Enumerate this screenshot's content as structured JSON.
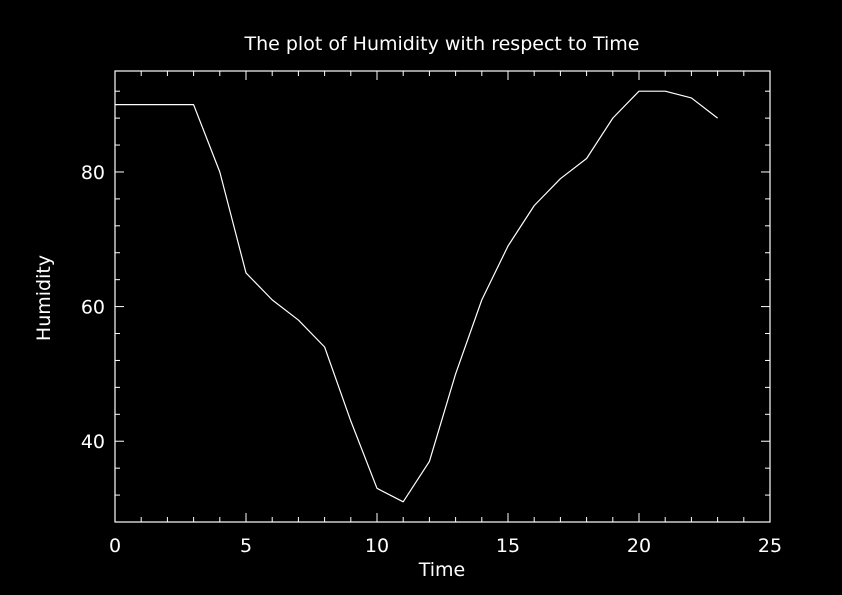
{
  "chart_data": {
    "type": "line",
    "title": "The plot of Humidity with respect to Time",
    "xlabel": "Time",
    "ylabel": "Humidity",
    "xlim": [
      0,
      25
    ],
    "ylim": [
      28,
      95
    ],
    "xticks": [
      0,
      5,
      10,
      15,
      20,
      25
    ],
    "yticks": [
      40,
      60,
      80
    ],
    "grid": false,
    "colors": {
      "background": "#000000",
      "line": "#ffffff",
      "axes": "#ffffff"
    },
    "series": [
      {
        "x": [
          0,
          1,
          2,
          3,
          4,
          5,
          6,
          7,
          8,
          9,
          10,
          11,
          12,
          13,
          14,
          15,
          16,
          17,
          18,
          19,
          20,
          21,
          22,
          23
        ],
        "values": [
          90,
          90,
          90,
          90,
          80,
          65,
          61,
          58,
          54,
          43,
          33,
          31,
          37,
          50,
          61,
          69,
          75,
          79,
          82,
          88,
          92,
          92,
          91,
          88
        ]
      }
    ]
  }
}
